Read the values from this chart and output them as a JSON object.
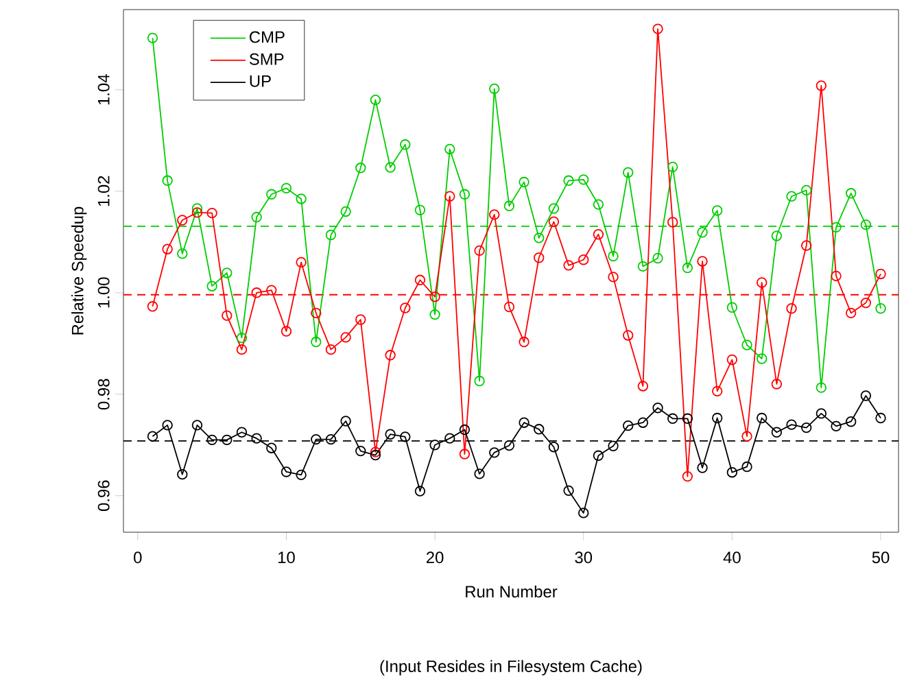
{
  "chart_data": {
    "type": "line",
    "xlabel": "Run Number",
    "ylabel": "Relative Speedup",
    "annotations": [
      "(Input Resides in Filesystem Cache)"
    ],
    "x": [
      1,
      2,
      3,
      4,
      5,
      6,
      7,
      8,
      9,
      10,
      11,
      12,
      13,
      14,
      15,
      16,
      17,
      18,
      19,
      20,
      21,
      22,
      23,
      24,
      25,
      26,
      27,
      28,
      29,
      30,
      31,
      32,
      33,
      34,
      35,
      36,
      37,
      38,
      39,
      40,
      41,
      42,
      43,
      44,
      45,
      46,
      47,
      48,
      49,
      50
    ],
    "series": [
      {
        "name": "CMP",
        "color": "#00cd00",
        "values": [
          1.0502,
          1.0221,
          1.0077,
          1.0166,
          1.0013,
          1.0039,
          0.9911,
          1.0149,
          1.0194,
          1.0206,
          1.0185,
          0.9903,
          1.0114,
          1.016,
          1.0246,
          1.038,
          1.0247,
          1.0292,
          1.0163,
          0.9957,
          1.0283,
          1.0194,
          0.9826,
          1.0402,
          1.0171,
          1.0218,
          1.0108,
          1.0166,
          1.0221,
          1.0223,
          1.0174,
          1.0072,
          1.0237,
          1.0052,
          1.0068,
          1.0248,
          1.0049,
          1.0119,
          1.0162,
          0.9971,
          0.9897,
          0.987,
          1.0112,
          1.019,
          1.0202,
          0.9813,
          1.0129,
          1.0196,
          1.0134,
          0.9969
        ]
      },
      {
        "name": "SMP",
        "color": "#ff0000",
        "values": [
          0.9973,
          1.0086,
          1.0143,
          1.0158,
          1.0157,
          0.9955,
          0.9888,
          1.0,
          1.0005,
          0.9924,
          1.006,
          0.996,
          0.9888,
          0.9912,
          0.9947,
          0.9686,
          0.9877,
          0.997,
          1.0025,
          0.9992,
          1.019,
          0.9682,
          1.0083,
          1.0154,
          0.9972,
          0.9903,
          1.0069,
          1.014,
          1.0054,
          1.0065,
          1.0115,
          1.0031,
          0.9916,
          0.9816,
          1.052,
          1.0139,
          0.9638,
          1.0062,
          0.9806,
          0.9868,
          0.9717,
          1.002,
          0.982,
          0.9969,
          1.0093,
          1.0408,
          1.0033,
          0.996,
          0.998,
          1.0037
        ]
      },
      {
        "name": "UP",
        "color": "#000000",
        "values": [
          0.9717,
          0.9739,
          0.9642,
          0.9739,
          0.971,
          0.971,
          0.9725,
          0.9713,
          0.9694,
          0.9647,
          0.9641,
          0.9711,
          0.9711,
          0.9747,
          0.9688,
          0.968,
          0.9721,
          0.9716,
          0.9609,
          0.97,
          0.9713,
          0.973,
          0.9643,
          0.9685,
          0.9699,
          0.9744,
          0.9731,
          0.9696,
          0.961,
          0.9566,
          0.9679,
          0.9698,
          0.9738,
          0.9744,
          0.9773,
          0.9752,
          0.9752,
          0.9655,
          0.9753,
          0.9646,
          0.9657,
          0.9753,
          0.9725,
          0.974,
          0.9734,
          0.9762,
          0.9737,
          0.9746,
          0.9797,
          0.9753
        ]
      }
    ],
    "ref_lines": [
      {
        "axis": "y",
        "value": 1.0131,
        "color": "#00cd00",
        "line_style": "dashed"
      },
      {
        "axis": "y",
        "value": 0.9996,
        "color": "#ff0000",
        "line_style": "dashed"
      },
      {
        "axis": "y",
        "value": 0.9708,
        "color": "#000000",
        "line_style": "dashed"
      }
    ],
    "xlim": [
      -0.96,
      51.2
    ],
    "ylim": [
      0.9528,
      1.0558
    ],
    "xticks": [
      0,
      10,
      20,
      30,
      40,
      50
    ],
    "yticks": [
      0.96,
      0.98,
      {
        "value": 1.0,
        "label": "1.00"
      },
      1.02,
      1.04
    ],
    "grid": false,
    "legend": "top left",
    "marker": "circle",
    "line_style": "solid"
  }
}
